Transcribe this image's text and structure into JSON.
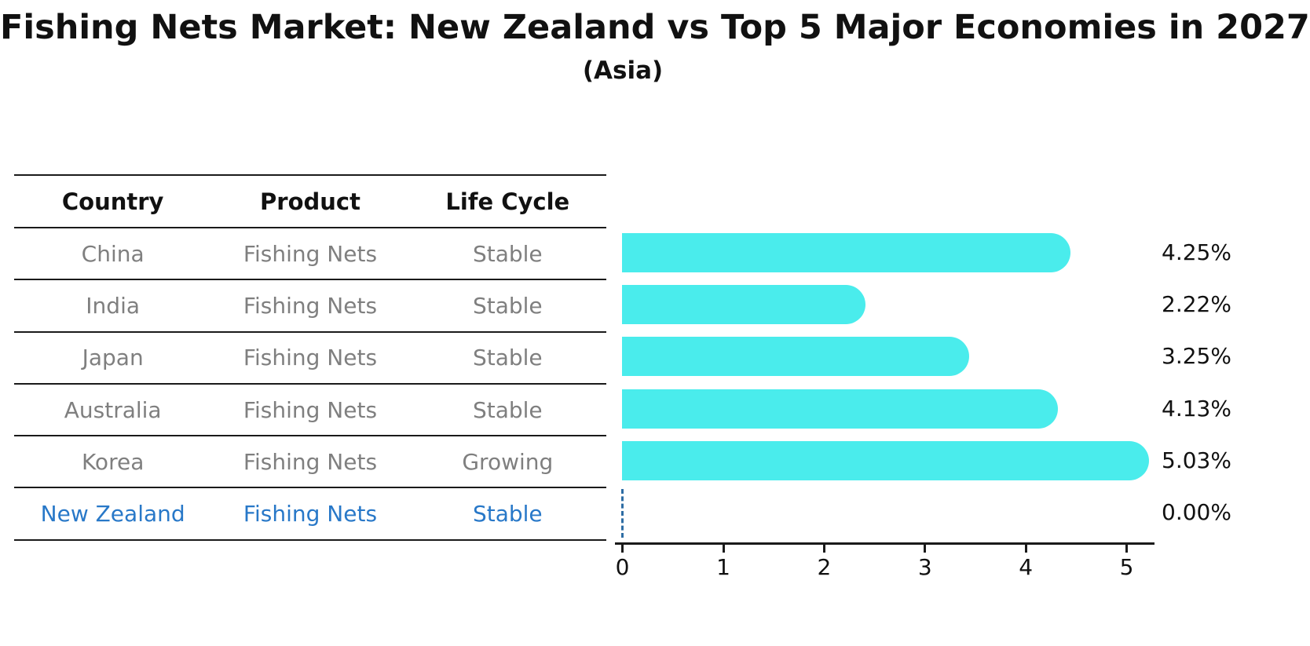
{
  "title": "Fishing Nets Market: New Zealand vs Top 5 Major Economies in 2027",
  "subtitle": "(Asia)",
  "table": {
    "columns": [
      "Country",
      "Product",
      "Life Cycle"
    ],
    "rows": [
      {
        "country": "China",
        "product": "Fishing Nets",
        "life_cycle": "Stable",
        "highlight": false
      },
      {
        "country": "India",
        "product": "Fishing Nets",
        "life_cycle": "Stable",
        "highlight": false
      },
      {
        "country": "Japan",
        "product": "Fishing Nets",
        "life_cycle": "Stable",
        "highlight": false
      },
      {
        "country": "Australia",
        "product": "Fishing Nets",
        "life_cycle": "Stable",
        "highlight": false
      },
      {
        "country": "Korea",
        "product": "Fishing Nets",
        "life_cycle": "Growing",
        "highlight": false
      },
      {
        "country": "New Zealand",
        "product": "Fishing Nets",
        "life_cycle": "Stable",
        "highlight": true
      }
    ]
  },
  "chart_data": {
    "type": "bar",
    "orientation": "horizontal",
    "title": "Fishing Nets Market: New Zealand vs Top 5 Major Economies in 2027 (Asia)",
    "categories": [
      "China",
      "India",
      "Japan",
      "Australia",
      "Korea",
      "New Zealand"
    ],
    "values": [
      4.25,
      2.22,
      3.25,
      4.13,
      5.03,
      0.0
    ],
    "value_labels": [
      "4.25%",
      "2.22%",
      "3.25%",
      "4.13%",
      "5.03%",
      "0.00%"
    ],
    "x_ticks": [
      "0",
      "1",
      "2",
      "3",
      "4",
      "5"
    ],
    "xlim": [
      0,
      5.3
    ],
    "grid": false,
    "legend": "none",
    "zero_value_marker": "dashed-line"
  },
  "colors": {
    "bar": "#4AECEC",
    "highlight_text": "#2878C8",
    "zero_marker": "#2E6DA4",
    "row_text": "#7f7f7f",
    "line": "#1a1a1a"
  }
}
